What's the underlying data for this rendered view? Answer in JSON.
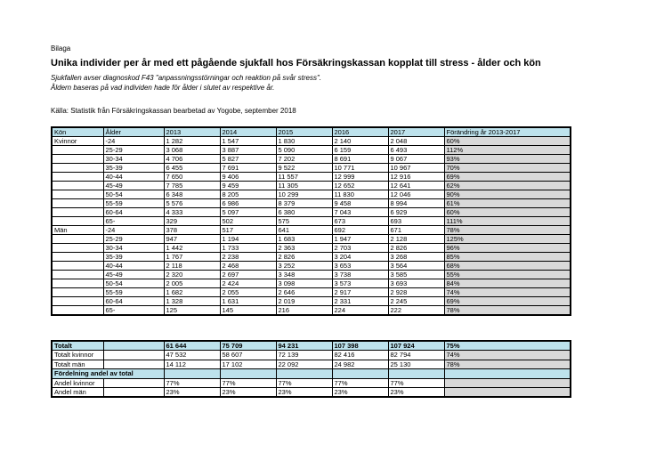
{
  "document": {
    "tag": "Bilaga",
    "title": "Unika individer per år med ett pågående sjukfall hos Försäkringskassan kopplat till stress - ålder och kön",
    "subtitle_line1": "Sjukfallen avser diagnoskod F43 \"anpassningsstörningar och reaktion på svår stress\".",
    "subtitle_line2": "Åldern baseras på vad individen hade för ålder i slutet av respektive år.",
    "source": "Källa: Statistik från Försäkringskassan bearbetad av Yogobe, september 2018"
  },
  "colors": {
    "header_blue": "#BDE2EC",
    "cell_gray": "#D9D9D9",
    "border": "#000000"
  },
  "table": {
    "columns": [
      "Kön",
      "Ålder",
      "2013",
      "2014",
      "2015",
      "2016",
      "2017",
      "Förändring år 2013-2017"
    ],
    "rows": [
      {
        "kon": "Kvinnor",
        "alder": "-24",
        "values": [
          "1 282",
          "1 547",
          "1 830",
          "2 140",
          "2 048"
        ],
        "change": "60%"
      },
      {
        "kon": "",
        "alder": "25-29",
        "values": [
          "3 068",
          "3 887",
          "5 090",
          "6 159",
          "6 493"
        ],
        "change": "112%"
      },
      {
        "kon": "",
        "alder": "30-34",
        "values": [
          "4 706",
          "5 827",
          "7 202",
          "8 691",
          "9 067"
        ],
        "change": "93%"
      },
      {
        "kon": "",
        "alder": "35-39",
        "values": [
          "6 455",
          "7 691",
          "9 522",
          "10 771",
          "10 967"
        ],
        "change": "70%"
      },
      {
        "kon": "",
        "alder": "40-44",
        "values": [
          "7 650",
          "9 406",
          "11 557",
          "12 999",
          "12 916"
        ],
        "change": "69%"
      },
      {
        "kon": "",
        "alder": "45-49",
        "values": [
          "7 785",
          "9 459",
          "11 305",
          "12 652",
          "12 641"
        ],
        "change": "62%"
      },
      {
        "kon": "",
        "alder": "50-54",
        "values": [
          "6 348",
          "8 205",
          "10 299",
          "11 830",
          "12 046"
        ],
        "change": "90%"
      },
      {
        "kon": "",
        "alder": "55-59",
        "values": [
          "5 576",
          "6 986",
          "8 379",
          "9 458",
          "8 994"
        ],
        "change": "61%"
      },
      {
        "kon": "",
        "alder": "60-64",
        "values": [
          "4 333",
          "5 097",
          "6 380",
          "7 043",
          "6 929"
        ],
        "change": "60%"
      },
      {
        "kon": "",
        "alder": "65-",
        "values": [
          "329",
          "502",
          "575",
          "673",
          "693"
        ],
        "change": "111%"
      },
      {
        "kon": "Män",
        "alder": "-24",
        "values": [
          "378",
          "517",
          "641",
          "692",
          "671"
        ],
        "change": "78%"
      },
      {
        "kon": "",
        "alder": "25-29",
        "values": [
          "947",
          "1 194",
          "1 683",
          "1 947",
          "2 128"
        ],
        "change": "125%"
      },
      {
        "kon": "",
        "alder": "30-34",
        "values": [
          "1 442",
          "1 733",
          "2 363",
          "2 703",
          "2 826"
        ],
        "change": "96%"
      },
      {
        "kon": "",
        "alder": "35-39",
        "values": [
          "1 767",
          "2 238",
          "2 826",
          "3 204",
          "3 268"
        ],
        "change": "85%"
      },
      {
        "kon": "",
        "alder": "40-44",
        "values": [
          "2 118",
          "2 468",
          "3 252",
          "3 653",
          "3 564"
        ],
        "change": "68%"
      },
      {
        "kon": "",
        "alder": "45-49",
        "values": [
          "2 320",
          "2 697",
          "3 348",
          "3 738",
          "3 585"
        ],
        "change": "55%"
      },
      {
        "kon": "",
        "alder": "50-54",
        "values": [
          "2 005",
          "2 424",
          "3 098",
          "3 573",
          "3 693"
        ],
        "change": "84%"
      },
      {
        "kon": "",
        "alder": "55-59",
        "values": [
          "1 682",
          "2 055",
          "2 646",
          "2 917",
          "2 928"
        ],
        "change": "74%"
      },
      {
        "kon": "",
        "alder": "60-64",
        "values": [
          "1 328",
          "1 631",
          "2 019",
          "2 331",
          "2 245"
        ],
        "change": "69%"
      },
      {
        "kon": "",
        "alder": "65-",
        "values": [
          "125",
          "145",
          "216",
          "224",
          "222"
        ],
        "change": "78%"
      }
    ]
  },
  "summary": {
    "rows": [
      {
        "style": "total",
        "label": "Totalt",
        "values": [
          "61 644",
          "75 709",
          "94 231",
          "107 398",
          "107 924"
        ],
        "change": "75%"
      },
      {
        "style": "plain",
        "label": "Totalt kvinnor",
        "values": [
          "47 532",
          "58 607",
          "72 139",
          "82 416",
          "82 794"
        ],
        "change": "74%"
      },
      {
        "style": "plain",
        "label": "Totalt män",
        "values": [
          "14 112",
          "17 102",
          "22 092",
          "24 982",
          "25 130"
        ],
        "change": "78%"
      },
      {
        "style": "section",
        "label": "Fördelning andel av total",
        "values": [
          "",
          "",
          "",
          "",
          ""
        ],
        "change": ""
      },
      {
        "style": "plain",
        "label": "Andel kvinnor",
        "values": [
          "77%",
          "77%",
          "77%",
          "77%",
          "77%"
        ],
        "change": ""
      },
      {
        "style": "plain",
        "label": "Andel män",
        "values": [
          "23%",
          "23%",
          "23%",
          "23%",
          "23%"
        ],
        "change": ""
      }
    ]
  }
}
